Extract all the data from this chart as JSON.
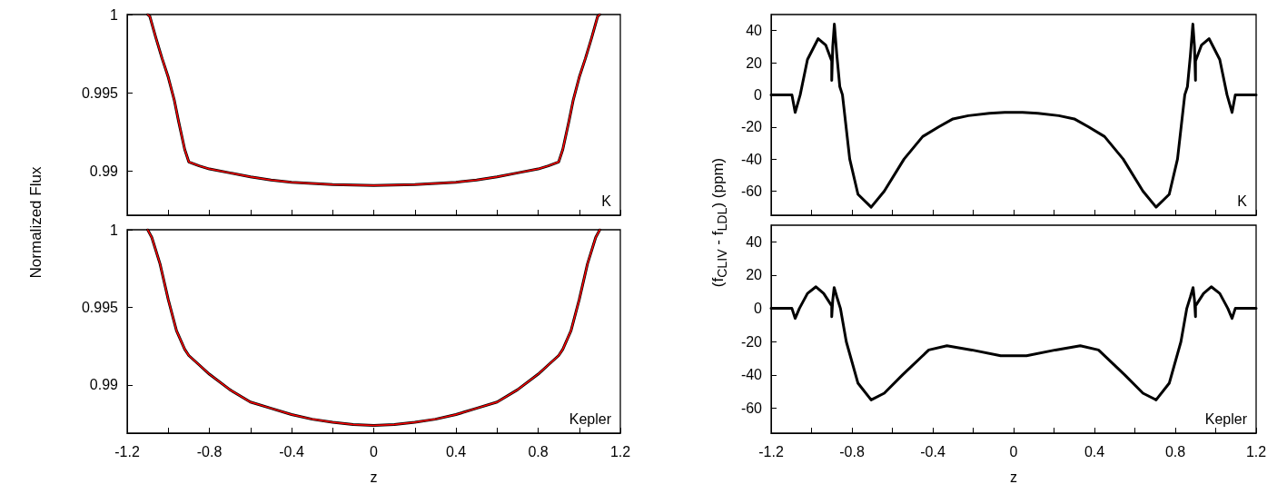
{
  "chart_data": [
    {
      "type": "line",
      "ylabel": "Normalized Flux",
      "annotations": [
        "K"
      ],
      "tick_labels": "y",
      "grid": false,
      "marker": "none",
      "line_style": "solid",
      "x": [
        -1.1,
        -1.09,
        -1.06,
        -1.03,
        -1.0,
        -0.97,
        -0.95,
        -0.92,
        -0.9,
        -0.85,
        -0.8,
        -0.7,
        -0.6,
        -0.5,
        -0.4,
        -0.2,
        0,
        0.2,
        0.4,
        0.5,
        0.6,
        0.7,
        0.8,
        0.85,
        0.9,
        0.92,
        0.95,
        0.97,
        1.0,
        1.03,
        1.06,
        1.09,
        1.1
      ],
      "series": [
        {
          "color": "#000000",
          "values": [
            1,
            0.9999,
            0.9985,
            0.9972,
            0.996,
            0.9945,
            0.9932,
            0.9914,
            0.9906,
            0.99035,
            0.99015,
            0.9899,
            0.98965,
            0.98945,
            0.9893,
            0.98915,
            0.9891,
            0.98915,
            0.9893,
            0.98945,
            0.98965,
            0.9899,
            0.99015,
            0.99035,
            0.9906,
            0.9914,
            0.9932,
            0.9945,
            0.996,
            0.9972,
            0.9985,
            0.9999,
            1
          ]
        },
        {
          "color": "#ff0000",
          "values": [
            1,
            0.9999,
            0.9985,
            0.9972,
            0.996,
            0.9945,
            0.9932,
            0.9914,
            0.9906,
            0.99035,
            0.99015,
            0.9899,
            0.98965,
            0.98945,
            0.9893,
            0.98915,
            0.9891,
            0.98915,
            0.9893,
            0.98945,
            0.98965,
            0.9899,
            0.99015,
            0.99035,
            0.9906,
            0.9914,
            0.9932,
            0.9945,
            0.996,
            0.9972,
            0.9985,
            0.9999,
            1
          ]
        }
      ],
      "xlim": [
        -1.2,
        1.2
      ],
      "xticks": [
        -1.2,
        {
          "value": -1,
          "label": null
        },
        -0.8,
        {
          "value": -0.6,
          "label": null
        },
        -0.4,
        {
          "value": -0.2,
          "label": null
        },
        0,
        {
          "value": 0.2,
          "label": null
        },
        0.4,
        {
          "value": 0.6,
          "label": null
        },
        0.8,
        {
          "value": 1,
          "label": null
        },
        1.2
      ],
      "ylim": [
        0.9872,
        1
      ],
      "yticks": [
        0.99,
        0.995,
        1
      ]
    },
    {
      "type": "line",
      "xlabel": "z",
      "annotations": [
        "Kepler"
      ],
      "grid": false,
      "marker": "none",
      "line_style": "solid",
      "x": [
        -1.1,
        -1.08,
        -1.04,
        -1.0,
        -0.96,
        -0.92,
        -0.9,
        -0.85,
        -0.8,
        -0.7,
        -0.6,
        -0.5,
        -0.4,
        -0.3,
        -0.2,
        -0.1,
        0,
        0.1,
        0.2,
        0.3,
        0.4,
        0.5,
        0.6,
        0.7,
        0.8,
        0.85,
        0.9,
        0.92,
        0.96,
        1.0,
        1.04,
        1.08,
        1.1
      ],
      "series": [
        {
          "color": "#000000",
          "values": [
            1,
            0.9995,
            0.9978,
            0.9955,
            0.9935,
            0.9923,
            0.9919,
            0.9913,
            0.9907,
            0.9897,
            0.9889,
            0.9885,
            0.9881,
            0.9878,
            0.9876,
            0.98745,
            0.9874,
            0.98745,
            0.9876,
            0.9878,
            0.9881,
            0.9885,
            0.9889,
            0.9897,
            0.9907,
            0.9913,
            0.9919,
            0.9923,
            0.9935,
            0.9955,
            0.9978,
            0.9995,
            1
          ]
        },
        {
          "color": "#ff0000",
          "values": [
            1,
            0.9995,
            0.9978,
            0.9955,
            0.9935,
            0.9923,
            0.9919,
            0.9913,
            0.9907,
            0.9897,
            0.9889,
            0.9885,
            0.9881,
            0.9878,
            0.9876,
            0.98745,
            0.9874,
            0.98745,
            0.9876,
            0.9878,
            0.9881,
            0.9885,
            0.9889,
            0.9897,
            0.9907,
            0.9913,
            0.9919,
            0.9923,
            0.9935,
            0.9955,
            0.9978,
            0.9995,
            1
          ]
        }
      ],
      "xlim": [
        -1.2,
        1.2
      ],
      "xticks": [
        -1.2,
        {
          "value": -1,
          "label": null
        },
        -0.8,
        {
          "value": -0.6,
          "label": null
        },
        -0.4,
        {
          "value": -0.2,
          "label": null
        },
        0,
        {
          "value": 0.2,
          "label": null
        },
        0.4,
        {
          "value": 0.6,
          "label": null
        },
        0.8,
        {
          "value": 1,
          "label": null
        },
        1.2
      ],
      "ylim": [
        0.9869,
        1
      ],
      "yticks": [
        0.99,
        0.995,
        1
      ]
    },
    {
      "type": "line",
      "ylabel": "(f$_{CLIV}$ - f$_{LDL}$) (ppm)",
      "annotations": [
        "K"
      ],
      "tick_labels": "y",
      "grid": false,
      "marker": "none",
      "line_style": "solid",
      "x": [
        -1.2,
        -1.097,
        -1.081,
        -1.056,
        -1.02,
        -0.967,
        -0.93,
        -0.9,
        -0.9,
        -0.895,
        -0.887,
        -0.875,
        -0.86,
        -0.847,
        -0.811,
        -0.77,
        -0.705,
        -0.64,
        -0.542,
        -0.45,
        -0.371,
        -0.3,
        -0.224,
        -0.12,
        -0.044,
        0,
        0.044,
        0.12,
        0.224,
        0.3,
        0.371,
        0.45,
        0.542,
        0.64,
        0.705,
        0.77,
        0.811,
        0.847,
        0.86,
        0.875,
        0.887,
        0.895,
        0.9,
        0.9,
        0.93,
        0.967,
        1.02,
        1.056,
        1.081,
        1.097,
        1.2
      ],
      "series": [
        {
          "color": "#000000",
          "values": [
            0,
            0,
            -11,
            0,
            22,
            35,
            31,
            21,
            9,
            30,
            44,
            25,
            5,
            0,
            -40,
            -62,
            -70,
            -60,
            -40,
            -26,
            -20,
            -15,
            -13,
            -11.5,
            -11,
            -11,
            -11,
            -11.5,
            -13,
            -15,
            -20,
            -26,
            -40,
            -60,
            -70,
            -62,
            -40,
            0,
            5,
            25,
            44,
            30,
            9,
            21,
            31,
            35,
            22,
            0,
            -11,
            0,
            0
          ]
        }
      ],
      "xlim": [
        -1.2,
        1.2
      ],
      "xticks": [
        -1.2,
        {
          "value": -1,
          "label": null
        },
        -0.8,
        {
          "value": -0.6,
          "label": null
        },
        -0.4,
        {
          "value": -0.2,
          "label": null
        },
        0,
        {
          "value": 0.2,
          "label": null
        },
        0.4,
        {
          "value": 0.6,
          "label": null
        },
        0.8,
        {
          "value": 1,
          "label": null
        },
        1.2
      ],
      "ylim": [
        -75,
        50
      ],
      "yticks": [
        -60,
        -40,
        -20,
        0,
        20,
        40
      ]
    },
    {
      "type": "line",
      "xlabel": "z",
      "annotations": [
        "Kepler"
      ],
      "grid": false,
      "marker": "none",
      "line_style": "solid",
      "x": [
        -1.2,
        -1.097,
        -1.081,
        -1.06,
        -1.02,
        -0.978,
        -0.94,
        -0.9,
        -0.9,
        -0.895,
        -0.888,
        -0.875,
        -0.857,
        -0.828,
        -0.77,
        -0.705,
        -0.64,
        -0.55,
        -0.42,
        -0.33,
        -0.207,
        -0.064,
        0,
        0.064,
        0.207,
        0.33,
        0.42,
        0.55,
        0.64,
        0.705,
        0.77,
        0.828,
        0.857,
        0.875,
        0.888,
        0.895,
        0.9,
        0.9,
        0.94,
        0.978,
        1.02,
        1.06,
        1.081,
        1.097,
        1.2
      ],
      "series": [
        {
          "color": "#000000",
          "values": [
            0,
            0,
            -6,
            0,
            9,
            13,
            9,
            1.5,
            -5,
            5,
            12.5,
            7,
            0,
            -20,
            -45,
            -55,
            -51,
            -40,
            -25,
            -22.5,
            -25,
            -28.5,
            -28.5,
            -28.5,
            -25,
            -22.5,
            -25,
            -40,
            -51,
            -55,
            -45,
            -20,
            0,
            7,
            12.5,
            5,
            -5,
            1.5,
            9,
            13,
            9,
            0,
            -6,
            0,
            0
          ]
        }
      ],
      "xlim": [
        -1.2,
        1.2
      ],
      "xticks": [
        -1.2,
        {
          "value": -1,
          "label": null
        },
        -0.8,
        {
          "value": -0.6,
          "label": null
        },
        -0.4,
        {
          "value": -0.2,
          "label": null
        },
        0,
        {
          "value": 0.2,
          "label": null
        },
        0.4,
        {
          "value": 0.6,
          "label": null
        },
        0.8,
        {
          "value": 1,
          "label": null
        },
        1.2
      ],
      "ylim": [
        -75,
        50
      ],
      "yticks": [
        -60,
        -40,
        -20,
        0,
        20,
        40
      ]
    }
  ]
}
